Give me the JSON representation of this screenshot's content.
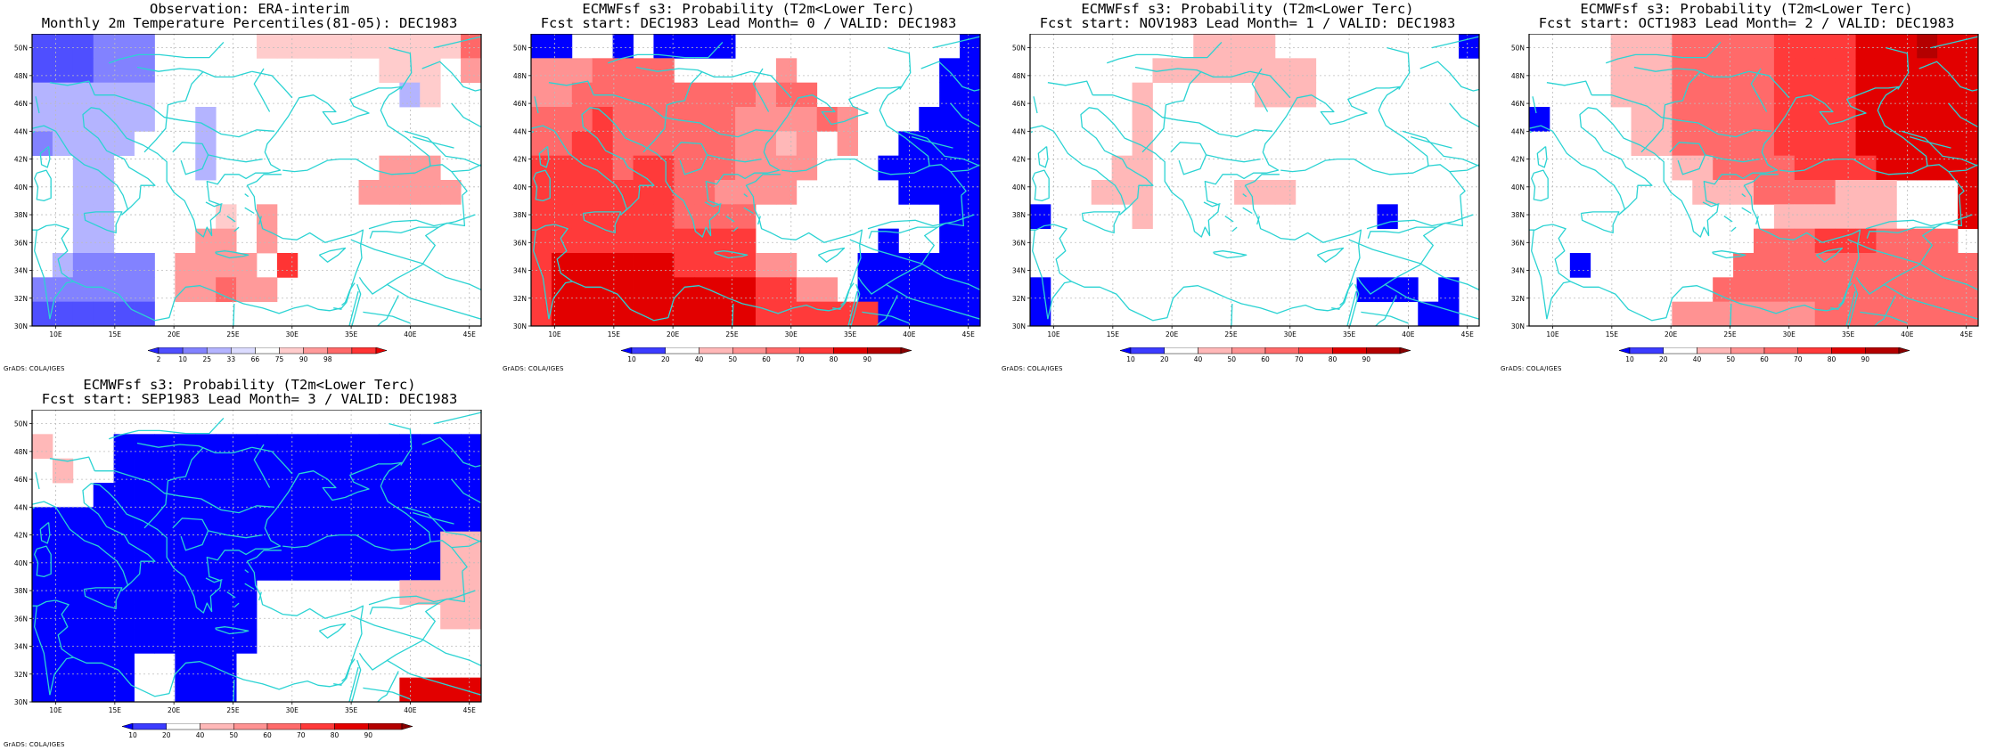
{
  "credit": "GrADS: COLA/IGES",
  "map_extent": {
    "lon_min": 8,
    "lon_max": 46,
    "lat_min": 30,
    "lat_max": 51
  },
  "lon_ticks": [
    "10E",
    "15E",
    "20E",
    "25E",
    "30E",
    "35E",
    "40E",
    "45E"
  ],
  "lat_ticks": [
    "30N",
    "32N",
    "34N",
    "36N",
    "38N",
    "40N",
    "42N",
    "44N",
    "46N",
    "48N",
    "50N"
  ],
  "colors": {
    "grid": "#bcbcbc",
    "coast": "#2bd3d3",
    "obs_scale": [
      "#2323ff",
      "#4f4fff",
      "#8282ff",
      "#b4b4ff",
      "#dcdcff",
      "#ffffff",
      "#ffcccc",
      "#ff9a9a",
      "#ff6868",
      "#ff3434",
      "#e60000"
    ],
    "prob_scale": [
      "#0000ff",
      "#3c3cff",
      "#ffffff",
      "#ffb8b8",
      "#ff9292",
      "#ff6a6a",
      "#ff3a3a",
      "#e20000",
      "#b40000",
      "#850000"
    ]
  },
  "panels": [
    {
      "title1": "Observation: ERA-interim",
      "title2": "Monthly 2m Temperature Percentiles(81-05): DEC1983",
      "colorbar_labels": [
        "2",
        "10",
        "25",
        "33",
        "66",
        "75",
        "90",
        "98"
      ],
      "scale": "obs",
      "grid": [
        "1112225555566666666668",
        "1112225555555555566657",
        "3333335555555555553655",
        "3333335535555555555555",
        "2333355535555555555555",
        "5533555535555555577755",
        "5533555555555555777775",
        "5533555556575555555555",
        "5533555577575555555555",
        "5322225777759555555555",
        "2222225778775555555555",
        "1111115555555555555555"
      ]
    },
    {
      "title1": "ECMWFsf s3: Probability (T2m<Lower Terc)",
      "title2": "Fcst start: DEC1983  Lead Month= 0 / VALID: DEC1983",
      "colorbar_labels": [
        "10",
        "20",
        "40",
        "50",
        "60",
        "70",
        "80",
        "90"
      ],
      "scale": "prob",
      "grid": [
        "0022020000222222222220",
        "4445555222224222222200",
        "4455555555545522222200",
        "5556555555444454222000",
        "5566555555443424220000",
        "6666566555444422200000",
        "6666666554444222220000",
        "6666666555522222222200",
        "6666666666622222202200",
        "6777777666644222000000",
        "6777777777766442000000",
        "6777777777766666600000"
      ]
    },
    {
      "title1": "ECMWFsf s3: Probability (T2m<Lower Terc)",
      "title2": "Fcst start: NOV1983  Lead Month= 1 / VALID: DEC1983",
      "colorbar_labels": [
        "10",
        "20",
        "40",
        "50",
        "60",
        "70",
        "80",
        "90"
      ],
      "scale": "prob",
      "grid": [
        "2222222233332222222220",
        "2222223333333322222222",
        "2222232222233322222222",
        "2222232222222222222222",
        "2222232222222222222222",
        "2222332222222222222222",
        "2223332222333222222222",
        "0222232222222222202222",
        "2222222222222222222222",
        "2222222222222222222222",
        "0222222222222222000202",
        "0222222222222222222002"
      ]
    },
    {
      "title1": "ECMWFsf s3: Probability (T2m<Lower Terc)",
      "title2": "Fcst start: OCT1983  Lead Month= 2 / VALID: DEC1983",
      "colorbar_labels": [
        "10",
        "20",
        "40",
        "50",
        "60",
        "70",
        "80",
        "90"
      ],
      "scale": "prob",
      "grid": [
        "2222333555556666777877",
        "2222333555556666777777",
        "2222333555556666777777",
        "0222233555556666777777",
        "2222233555556666777777",
        "2222222335555666677777",
        "2222222233355553332227",
        "2222222222223333332227",
        "2222222222255566655552",
        "2202222222555555555555",
        "2222222225555555555555",
        "2222222444444455555555"
      ]
    },
    {
      "title1": "ECMWFsf s3: Probability (T2m<Lower Terc)",
      "title2": "Fcst start: SEP1983  Lead Month= 3 / VALID: DEC1983",
      "colorbar_labels": [
        "10",
        "20",
        "40",
        "50",
        "60",
        "70",
        "80",
        "90"
      ],
      "scale": "prob",
      "grid": [
        "2222222222222222222222",
        "3222000000000000000000",
        "2322000000000000000000",
        "2220000000000000000000",
        "0000000000000000000000",
        "0000000000000000000033",
        "0000000000000000000033",
        "0000000000022222223333",
        "0000000000022222222233",
        "0000000000022222222222",
        "0000022000222222222222",
        "0000022000222222227777"
      ]
    }
  ]
}
